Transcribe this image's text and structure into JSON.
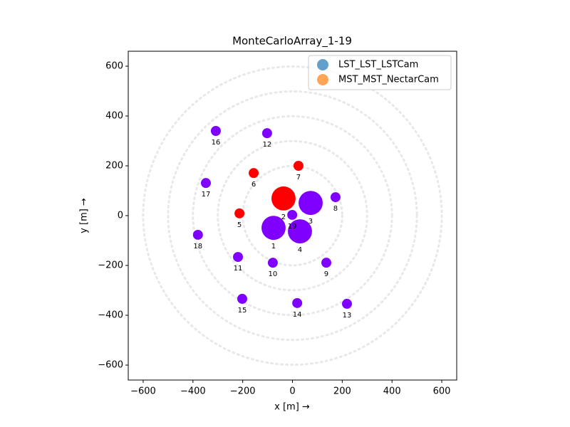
{
  "chart_data": {
    "type": "scatter",
    "title": "MonteCarloArray_1-19",
    "xlabel": "x [m]  →",
    "ylabel": "y [m]  →",
    "xlim": [
      -660,
      660
    ],
    "ylim": [
      -660,
      660
    ],
    "xticks": [
      {
        "value": -600,
        "label": "−600"
      },
      {
        "value": -400,
        "label": "−400"
      },
      {
        "value": -200,
        "label": "−200"
      },
      0,
      200,
      400,
      600
    ],
    "yticks": [
      {
        "value": -600,
        "label": "−600"
      },
      {
        "value": -400,
        "label": "−400"
      },
      {
        "value": -200,
        "label": "−200"
      },
      0,
      200,
      400,
      600
    ],
    "circles": [
      200,
      300,
      400,
      500,
      600
    ],
    "legend": "upper right",
    "series": [
      {
        "name": "LST_LST_LSTCam",
        "color": "#1f77b4"
      },
      {
        "name": "MST_MST_NectarCam",
        "color": "#ff7f0e"
      }
    ],
    "points": {
      "labels": [
        "1",
        "2",
        "3",
        "4",
        "5",
        "6",
        "7",
        "8",
        "9",
        "10",
        "11",
        "12",
        "13",
        "14",
        "15",
        "16",
        "17",
        "18",
        "19"
      ],
      "x": [
        -76,
        -36,
        73,
        30,
        -213,
        -156,
        24,
        173,
        136,
        -79,
        -219,
        -102,
        219,
        19,
        -202,
        -308,
        -348,
        -380,
        -1
      ],
      "y": [
        -49,
        69,
        51,
        -63,
        9,
        171,
        200,
        74,
        -189,
        -189,
        -166,
        331,
        -354,
        -351,
        -334,
        340,
        131,
        -77,
        3
      ],
      "sizes": [
        97,
        97,
        97,
        97,
        40,
        40,
        40,
        40,
        40,
        40,
        40,
        40,
        40,
        40,
        40,
        40,
        40,
        40,
        40
      ],
      "colors": [
        "#7f00ff",
        "#ff0000",
        "#7f00ff",
        "#7f00ff",
        "#ff0000",
        "#ff0000",
        "#ff0000",
        "#7f00ff",
        "#7f00ff",
        "#7f00ff",
        "#7f00ff",
        "#7f00ff",
        "#7f00ff",
        "#7f00ff",
        "#7f00ff",
        "#7f00ff",
        "#7f00ff",
        "#7f00ff",
        "#7f00ff"
      ]
    }
  }
}
